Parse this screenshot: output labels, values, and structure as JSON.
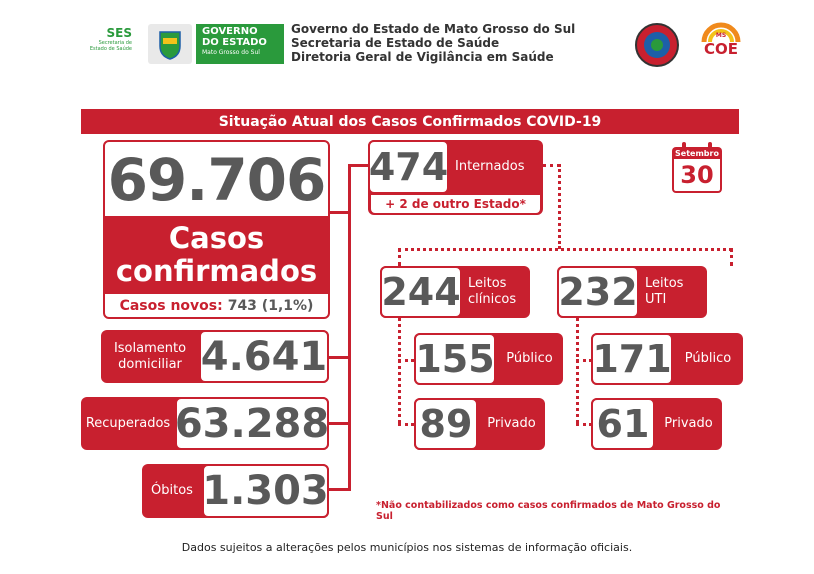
{
  "header": {
    "ses_logo": "SES",
    "ses_sub": "Secretaria de Estado de Saúde",
    "gov_line1": "GOVERNO",
    "gov_line2": "DO ESTADO",
    "gov_line3": "Mato Grosso do Sul",
    "title1": "Governo do Estado de Mato Grosso do Sul",
    "title2": "Secretaria de Estado de Saúde",
    "title3": "Diretoria Geral de Vigilância em Saúde",
    "coe_ms": "MS",
    "coe": "COE"
  },
  "banner": "Situação Atual dos Casos Confirmados COVID-19",
  "calendar": {
    "month": "Setembro",
    "day": "30"
  },
  "main": {
    "total": "69.706",
    "total_label1": "Casos",
    "total_label2": "confirmados",
    "new_cases_label": "Casos novos:",
    "new_cases_value": "743 (1,1%)"
  },
  "isolation": {
    "label1": "Isolamento",
    "label2": "domiciliar",
    "value": "4.641"
  },
  "recovered": {
    "label": "Recuperados",
    "value": "63.288"
  },
  "deaths": {
    "label": "Óbitos",
    "value": "1.303"
  },
  "hospitalized": {
    "value": "474",
    "label": "Internados",
    "extra": "+ 2 de outro Estado*"
  },
  "clinical": {
    "value": "244",
    "label1": "Leitos",
    "label2": "clínicos",
    "public_value": "155",
    "public_label": "Público",
    "private_value": "89",
    "private_label": "Privado"
  },
  "icu": {
    "value": "232",
    "label1": "Leitos",
    "label2": "UTI",
    "public_value": "171",
    "public_label": "Público",
    "private_value": "61",
    "private_label": "Privado"
  },
  "footnote": "*Não contabilizados como casos confirmados de Mato Grosso do Sul",
  "disclaimer": "Dados sujeitos a alterações pelos municípios nos sistemas de informação oficiais.",
  "colors": {
    "red": "#c8202f",
    "gray": "#595959",
    "green": "#2a9a3c"
  }
}
